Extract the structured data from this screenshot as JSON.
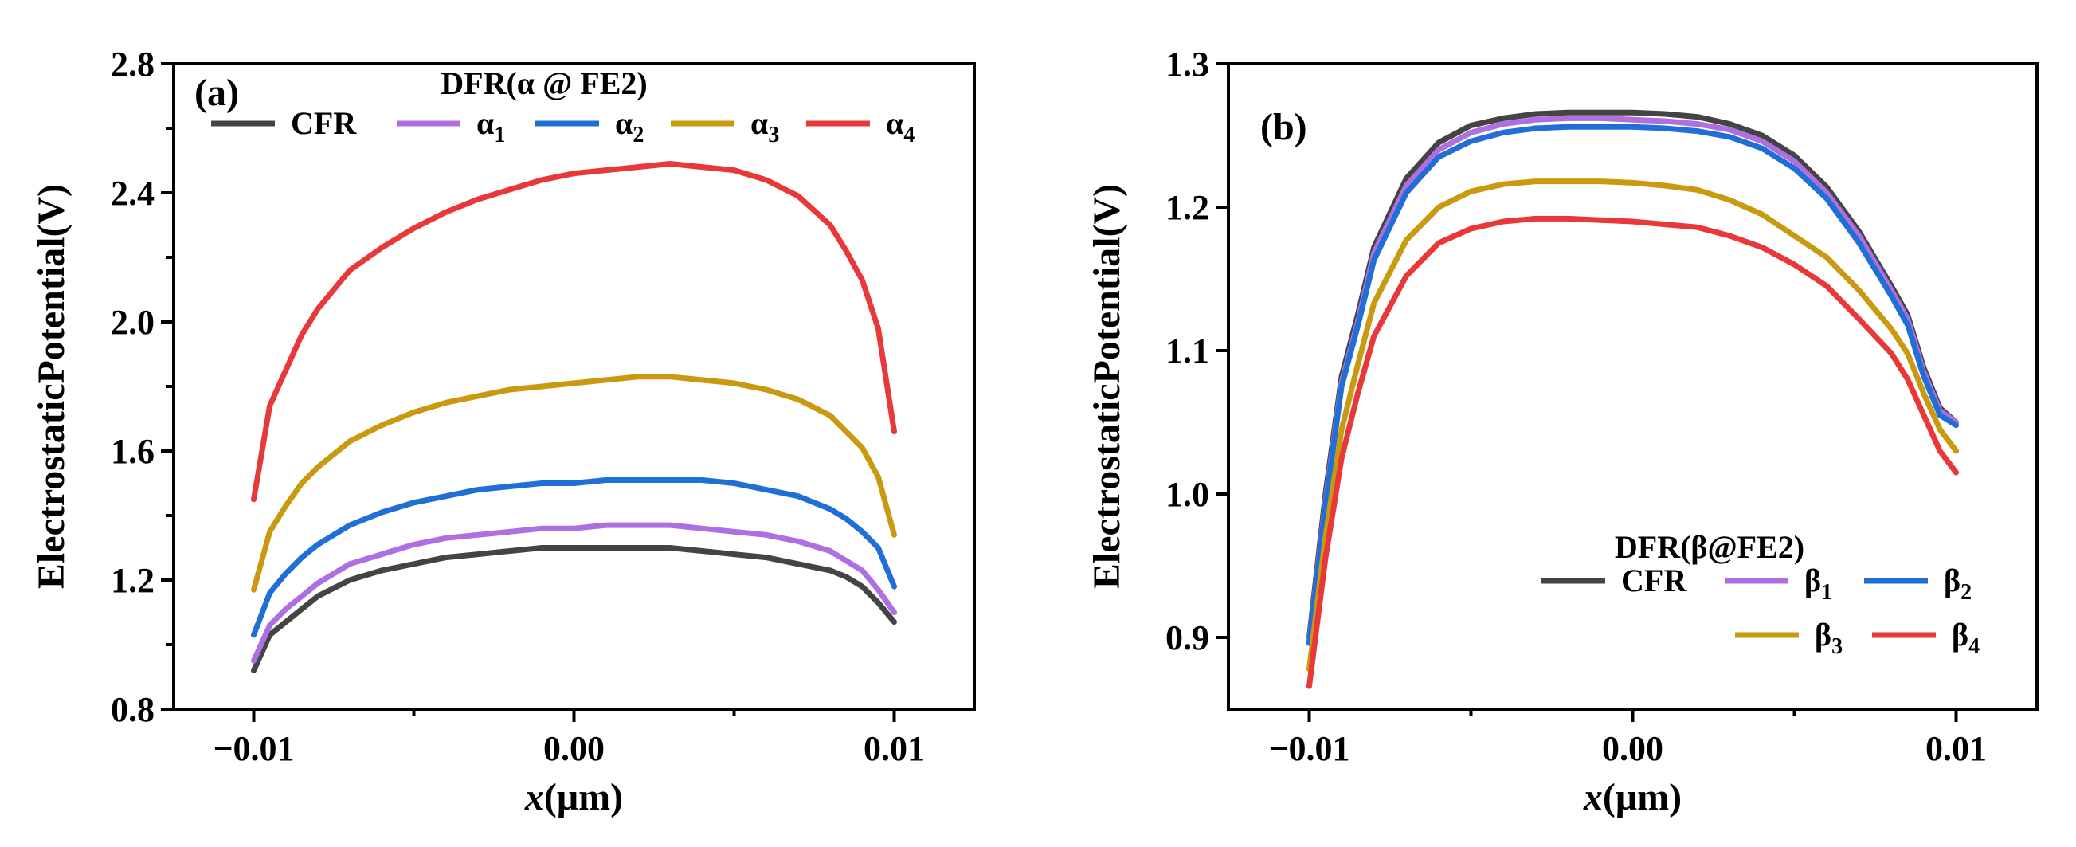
{
  "chart_data": [
    {
      "panel_label": "(a)",
      "type": "line",
      "xlabel_var": "x",
      "xlabel_unit": "(μm)",
      "ylabel": "ElectrostaticPotential(V)",
      "xlim": [
        -0.0125,
        0.0125
      ],
      "ylim": [
        0.8,
        2.8
      ],
      "x_ticks": [
        -0.01,
        0.0,
        0.01
      ],
      "x_tick_labels": [
        "−0.01",
        "0.00",
        "0.01"
      ],
      "y_ticks": [
        0.8,
        1.2,
        1.6,
        2.0,
        2.4,
        2.8
      ],
      "y_tick_labels": [
        "0.8",
        "1.2",
        "1.6",
        "2.0",
        "2.4",
        "2.8"
      ],
      "legend_title": "DFR(α @ FE2)",
      "legend_position": "top",
      "x": [
        -0.01,
        -0.0095,
        -0.009,
        -0.0085,
        -0.008,
        -0.007,
        -0.006,
        -0.005,
        -0.004,
        -0.003,
        -0.002,
        -0.001,
        0.0,
        0.001,
        0.002,
        0.003,
        0.004,
        0.005,
        0.006,
        0.007,
        0.008,
        0.0085,
        0.009,
        0.0095,
        0.01
      ],
      "series": [
        {
          "name": "CFR",
          "base": "CFR",
          "sub": "",
          "color": "#444444",
          "values": [
            0.92,
            1.03,
            1.07,
            1.11,
            1.15,
            1.2,
            1.23,
            1.25,
            1.27,
            1.28,
            1.29,
            1.3,
            1.3,
            1.3,
            1.3,
            1.3,
            1.29,
            1.28,
            1.27,
            1.25,
            1.23,
            1.21,
            1.18,
            1.13,
            1.07
          ]
        },
        {
          "name": "α1",
          "base": "α",
          "sub": "1",
          "color": "#b06fe0",
          "values": [
            0.95,
            1.06,
            1.11,
            1.15,
            1.19,
            1.25,
            1.28,
            1.31,
            1.33,
            1.34,
            1.35,
            1.36,
            1.36,
            1.37,
            1.37,
            1.37,
            1.36,
            1.35,
            1.34,
            1.32,
            1.29,
            1.26,
            1.23,
            1.17,
            1.1
          ]
        },
        {
          "name": "α2",
          "base": "α",
          "sub": "2",
          "color": "#1f6fd6",
          "values": [
            1.03,
            1.16,
            1.22,
            1.27,
            1.31,
            1.37,
            1.41,
            1.44,
            1.46,
            1.48,
            1.49,
            1.5,
            1.5,
            1.51,
            1.51,
            1.51,
            1.51,
            1.5,
            1.48,
            1.46,
            1.42,
            1.39,
            1.35,
            1.3,
            1.18
          ]
        },
        {
          "name": "α3",
          "base": "α",
          "sub": "3",
          "color": "#c99a10",
          "values": [
            1.17,
            1.35,
            1.43,
            1.5,
            1.55,
            1.63,
            1.68,
            1.72,
            1.75,
            1.77,
            1.79,
            1.8,
            1.81,
            1.82,
            1.83,
            1.83,
            1.82,
            1.81,
            1.79,
            1.76,
            1.71,
            1.66,
            1.61,
            1.52,
            1.34
          ]
        },
        {
          "name": "α4",
          "base": "α",
          "sub": "4",
          "color": "#e8383a",
          "values": [
            1.45,
            1.74,
            1.85,
            1.96,
            2.04,
            2.16,
            2.23,
            2.29,
            2.34,
            2.38,
            2.41,
            2.44,
            2.46,
            2.47,
            2.48,
            2.49,
            2.48,
            2.47,
            2.44,
            2.39,
            2.3,
            2.22,
            2.13,
            1.98,
            1.66
          ]
        }
      ]
    },
    {
      "panel_label": "(b)",
      "type": "line",
      "xlabel_var": "x",
      "xlabel_unit": "(μm)",
      "ylabel": "ElectrostaticPotential(V)",
      "xlim": [
        -0.0125,
        0.0125
      ],
      "ylim": [
        0.85,
        1.3
      ],
      "x_ticks": [
        -0.01,
        0.0,
        0.01
      ],
      "x_tick_labels": [
        "−0.01",
        "0.00",
        "0.01"
      ],
      "y_ticks": [
        0.9,
        1.0,
        1.1,
        1.2,
        1.3
      ],
      "y_tick_labels": [
        "0.9",
        "1.0",
        "1.1",
        "1.2",
        "1.3"
      ],
      "legend_title": "DFR(β@FE2)",
      "legend_position": "bottom-right",
      "x": [
        -0.01,
        -0.0095,
        -0.009,
        -0.0085,
        -0.008,
        -0.007,
        -0.006,
        -0.005,
        -0.004,
        -0.003,
        -0.002,
        -0.001,
        0.0,
        0.001,
        0.002,
        0.003,
        0.004,
        0.005,
        0.006,
        0.007,
        0.008,
        0.0085,
        0.009,
        0.0095,
        0.01
      ],
      "series": [
        {
          "name": "CFR",
          "base": "CFR",
          "sub": "",
          "color": "#444444",
          "values": [
            0.9,
            1.0,
            1.082,
            1.125,
            1.172,
            1.22,
            1.245,
            1.257,
            1.262,
            1.265,
            1.266,
            1.266,
            1.266,
            1.265,
            1.263,
            1.258,
            1.25,
            1.236,
            1.214,
            1.183,
            1.145,
            1.125,
            1.088,
            1.06,
            1.05
          ]
        },
        {
          "name": "β1",
          "base": "β",
          "sub": "1",
          "color": "#b06fe0",
          "values": [
            0.897,
            0.995,
            1.078,
            1.12,
            1.168,
            1.215,
            1.24,
            1.252,
            1.258,
            1.261,
            1.262,
            1.262,
            1.261,
            1.26,
            1.258,
            1.254,
            1.246,
            1.232,
            1.21,
            1.18,
            1.142,
            1.122,
            1.085,
            1.058,
            1.05
          ]
        },
        {
          "name": "β2",
          "base": "β",
          "sub": "2",
          "color": "#1f6fd6",
          "values": [
            0.896,
            0.992,
            1.075,
            1.117,
            1.163,
            1.21,
            1.235,
            1.246,
            1.252,
            1.255,
            1.256,
            1.256,
            1.256,
            1.255,
            1.253,
            1.249,
            1.241,
            1.227,
            1.206,
            1.175,
            1.138,
            1.118,
            1.082,
            1.055,
            1.048
          ]
        },
        {
          "name": "β3",
          "base": "β",
          "sub": "3",
          "color": "#c99a10",
          "values": [
            0.878,
            0.97,
            1.045,
            1.09,
            1.133,
            1.177,
            1.2,
            1.211,
            1.216,
            1.218,
            1.218,
            1.218,
            1.217,
            1.215,
            1.212,
            1.205,
            1.195,
            1.18,
            1.165,
            1.142,
            1.115,
            1.098,
            1.07,
            1.045,
            1.03
          ]
        },
        {
          "name": "β4",
          "base": "β",
          "sub": "4",
          "color": "#e8383a",
          "values": [
            0.866,
            0.955,
            1.025,
            1.07,
            1.11,
            1.152,
            1.175,
            1.185,
            1.19,
            1.192,
            1.192,
            1.191,
            1.19,
            1.188,
            1.186,
            1.18,
            1.172,
            1.16,
            1.145,
            1.122,
            1.098,
            1.08,
            1.055,
            1.03,
            1.015
          ]
        }
      ]
    }
  ]
}
